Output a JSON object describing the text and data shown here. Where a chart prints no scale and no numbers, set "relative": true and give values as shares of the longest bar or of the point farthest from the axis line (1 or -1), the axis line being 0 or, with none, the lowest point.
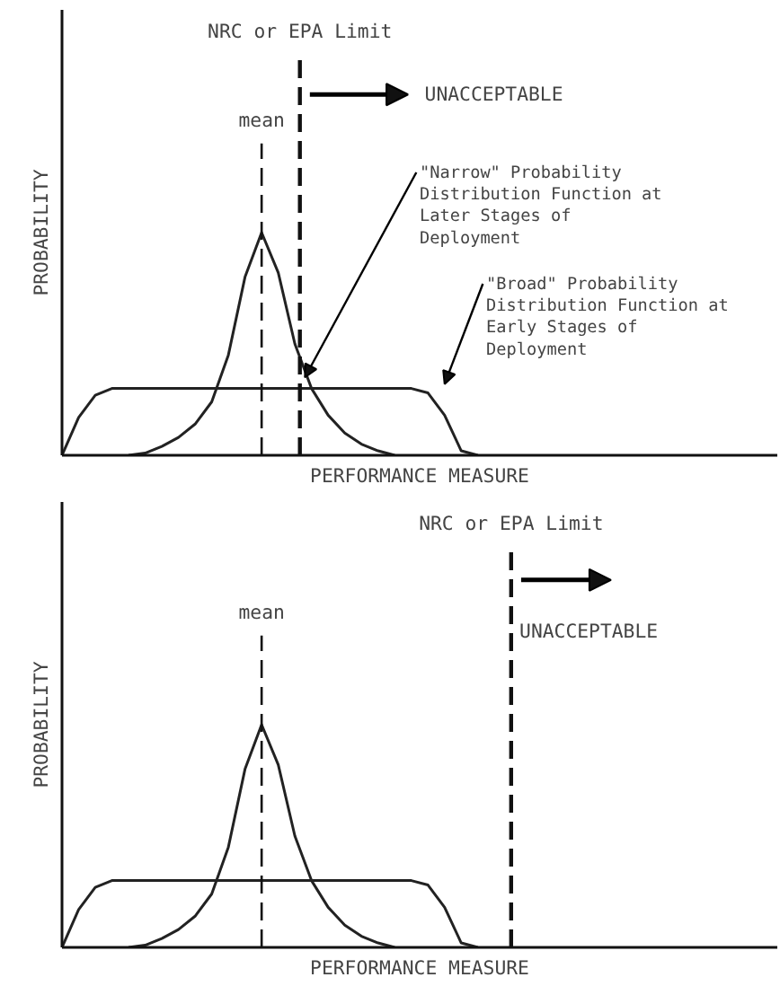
{
  "chart_data": [
    {
      "type": "line",
      "relative": true,
      "xlabel": "PERFORMANCE MEASURE",
      "ylabel": "PROBABILITY",
      "categories": [
        null,
        null,
        null,
        null,
        null,
        null,
        null,
        null,
        null,
        null,
        null,
        null,
        null,
        null,
        null,
        null,
        null,
        null,
        null,
        null,
        null,
        null,
        null,
        null,
        null,
        null,
        null,
        null,
        null,
        null,
        null,
        null,
        null
      ],
      "marker": "none",
      "line_style": "solid",
      "series": [
        {
          "name": "\"Narrow\" Probability Distribution Function at Later Stages of Deployment",
          "color": "#222222",
          "values": [
            null,
            null,
            null,
            null,
            0,
            0.01,
            0.04,
            0.08,
            0.14,
            0.24,
            0.45,
            0.8,
            1.0,
            0.82,
            0.5,
            0.3,
            0.18,
            0.1,
            0.05,
            0.02,
            0,
            null,
            null,
            null,
            null,
            null,
            null,
            null,
            null,
            null,
            null,
            null,
            null
          ]
        },
        {
          "name": "\"Broad\" Probability Distribution Function at Early Stages of Deployment",
          "color": "#222222",
          "values": [
            0,
            0.17,
            0.27,
            0.3,
            0.3,
            0.3,
            0.3,
            0.3,
            0.3,
            0.3,
            0.3,
            0.3,
            0.3,
            0.3,
            0.3,
            0.3,
            0.3,
            0.3,
            0.3,
            0.3,
            0.3,
            0.3,
            0.28,
            0.18,
            0.02,
            0,
            null,
            null,
            null,
            null,
            null,
            null,
            null
          ]
        }
      ],
      "annotations": [
        "mean",
        "NRC or EPA Limit",
        "UNACCEPTABLE"
      ]
    },
    {
      "type": "line",
      "relative": true,
      "xlabel": "PERFORMANCE MEASURE",
      "ylabel": "PROBABILITY",
      "categories": [
        null,
        null,
        null,
        null,
        null,
        null,
        null,
        null,
        null,
        null,
        null,
        null,
        null,
        null,
        null,
        null,
        null,
        null,
        null,
        null,
        null,
        null,
        null,
        null,
        null,
        null,
        null,
        null,
        null,
        null,
        null,
        null,
        null
      ],
      "marker": "none",
      "line_style": "solid",
      "series": [
        {
          "color": "#222222",
          "values": [
            null,
            null,
            null,
            null,
            0,
            0.01,
            0.04,
            0.08,
            0.14,
            0.24,
            0.45,
            0.8,
            1.0,
            0.82,
            0.5,
            0.3,
            0.18,
            0.1,
            0.05,
            0.02,
            0,
            null,
            null,
            null,
            null,
            null,
            null,
            null,
            null,
            null,
            null,
            null,
            null
          ]
        },
        {
          "color": "#222222",
          "values": [
            0,
            0.17,
            0.27,
            0.3,
            0.3,
            0.3,
            0.3,
            0.3,
            0.3,
            0.3,
            0.3,
            0.3,
            0.3,
            0.3,
            0.3,
            0.3,
            0.3,
            0.3,
            0.3,
            0.3,
            0.3,
            0.3,
            0.28,
            0.18,
            0.02,
            0,
            null,
            null,
            null,
            null,
            null,
            null,
            null
          ]
        }
      ],
      "annotations": [
        "mean",
        "NRC or EPA Limit",
        "UNACCEPTABLE"
      ]
    }
  ]
}
